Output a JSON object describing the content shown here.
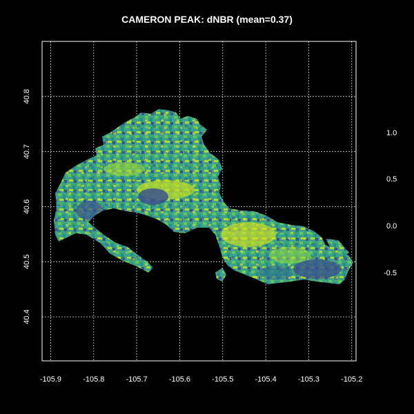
{
  "title": "CAMERON PEAK: dNBR (mean=0.37)",
  "map": {
    "x_ticks": [
      "-105.9",
      "-105.8",
      "-105.7",
      "-105.6",
      "-105.5",
      "-105.4",
      "-105.3",
      "-105.2"
    ],
    "y_ticks": [
      "40.4",
      "40.5",
      "40.6",
      "40.7",
      "40.8"
    ],
    "xlim": [
      -105.92,
      -105.19
    ],
    "ylim": [
      40.32,
      40.9
    ],
    "grid": true,
    "colormap": [
      "#3b528b",
      "#2c728e",
      "#21918c",
      "#28ae80",
      "#5ec962",
      "#addc30",
      "#fde725"
    ]
  },
  "colorbar": {
    "labels": [
      "1.0",
      "0.5",
      "0.0",
      "-0.5"
    ],
    "values": [
      1.0,
      0.5,
      0.0,
      -0.5
    ]
  }
}
